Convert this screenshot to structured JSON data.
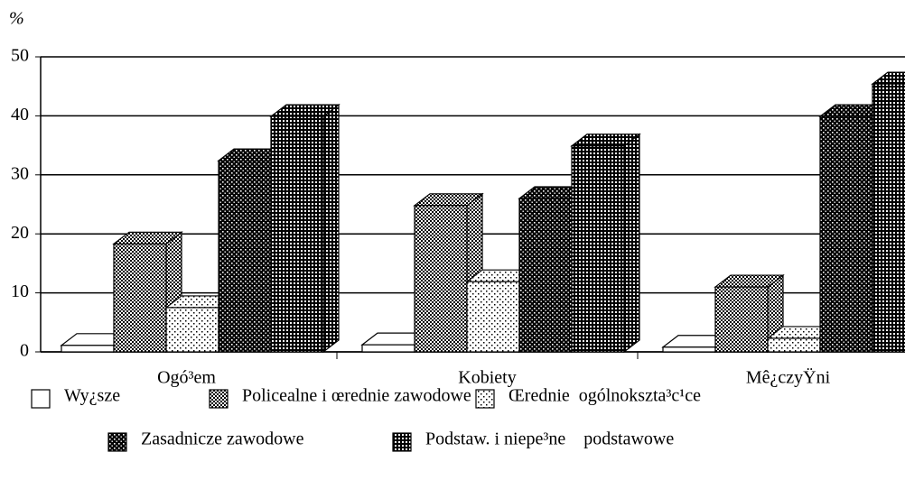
{
  "chart_data": {
    "type": "bar3d",
    "ylabel": "%",
    "categories": [
      "Ogó³em",
      "Kobiety",
      "Mê¿czyŸni"
    ],
    "series": [
      {
        "name": "Wy¿sze",
        "pattern": "white",
        "values": [
          1.1,
          1.2,
          0.8
        ]
      },
      {
        "name": "Policealne i œrednie zawodowe",
        "pattern": "checker",
        "values": [
          18.3,
          24.8,
          11
        ]
      },
      {
        "name": "Œrednie  ogólnokszta³c¹ce",
        "pattern": "dots",
        "values": [
          7.5,
          11.9,
          2.3
        ]
      },
      {
        "name": "Zasadnicze zawodowe",
        "pattern": "darkdots",
        "values": [
          32.4,
          26,
          39.9
        ]
      },
      {
        "name": "Podstaw. i niepe³ne    podstawowe",
        "pattern": "darkgrid",
        "values": [
          39.9,
          34.9,
          45.4
        ]
      }
    ],
    "ylim": [
      0,
      50
    ],
    "yticks": [
      0,
      10,
      20,
      30,
      40,
      50
    ],
    "grid": true
  }
}
